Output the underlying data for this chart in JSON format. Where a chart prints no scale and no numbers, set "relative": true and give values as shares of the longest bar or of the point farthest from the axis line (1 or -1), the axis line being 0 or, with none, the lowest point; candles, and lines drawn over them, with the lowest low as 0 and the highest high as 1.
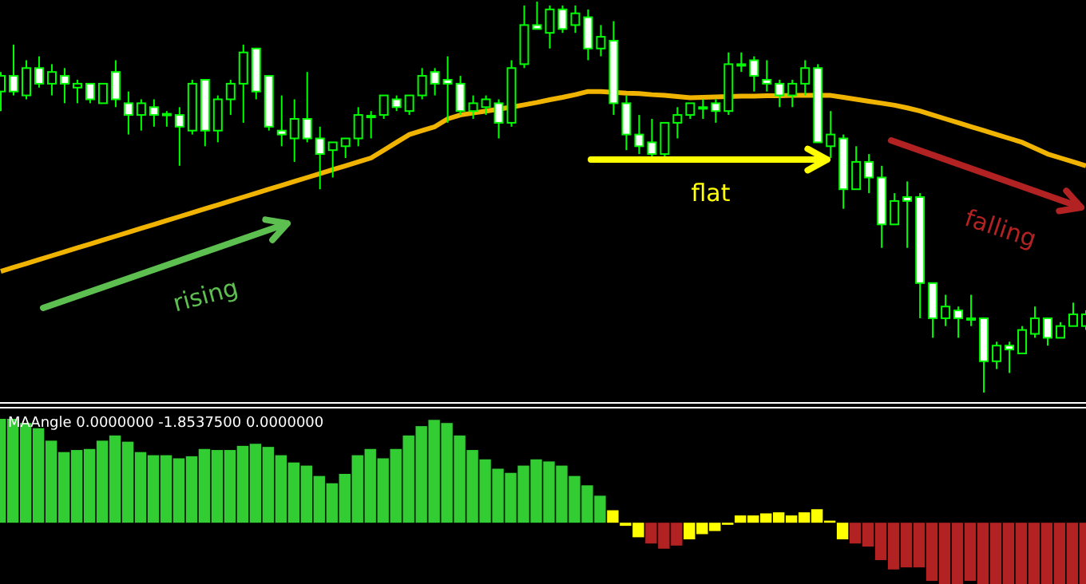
{
  "chart_data": [
    {
      "type": "candlestick",
      "relative": true,
      "categories": [
        null,
        null,
        null,
        null,
        null,
        null,
        null,
        null,
        null,
        null,
        null,
        null,
        null,
        null,
        null,
        null,
        null,
        null,
        null,
        null,
        null,
        null,
        null,
        null,
        null,
        null,
        null,
        null,
        null,
        null,
        null,
        null,
        null,
        null,
        null,
        null,
        null,
        null,
        null,
        null,
        null,
        null,
        null,
        null,
        null,
        null,
        null,
        null,
        null,
        null,
        null,
        null,
        null,
        null,
        null,
        null,
        null,
        null,
        null,
        null,
        null,
        null,
        null,
        null,
        null,
        null,
        null,
        null,
        null,
        null,
        null,
        null,
        null,
        null,
        null,
        null,
        null,
        null,
        null,
        null,
        null,
        null,
        null,
        null,
        null,
        null
      ],
      "ohlc": [
        [
          0.77,
          0.82,
          0.72,
          0.81
        ],
        [
          0.81,
          0.89,
          0.76,
          0.77
        ],
        [
          0.76,
          0.85,
          0.75,
          0.83
        ],
        [
          0.83,
          0.86,
          0.78,
          0.79
        ],
        [
          0.79,
          0.84,
          0.76,
          0.82
        ],
        [
          0.81,
          0.83,
          0.74,
          0.79
        ],
        [
          0.78,
          0.8,
          0.74,
          0.79
        ],
        [
          0.79,
          0.79,
          0.74,
          0.75
        ],
        [
          0.74,
          0.79,
          0.74,
          0.79
        ],
        [
          0.82,
          0.85,
          0.73,
          0.75
        ],
        [
          0.74,
          0.77,
          0.66,
          0.71
        ],
        [
          0.71,
          0.75,
          0.67,
          0.74
        ],
        [
          0.73,
          0.75,
          0.68,
          0.71
        ],
        [
          0.709,
          0.72,
          0.68,
          0.713
        ],
        [
          0.71,
          0.73,
          0.58,
          0.68
        ],
        [
          0.67,
          0.8,
          0.66,
          0.79
        ],
        [
          0.8,
          0.8,
          0.63,
          0.67
        ],
        [
          0.67,
          0.76,
          0.64,
          0.75
        ],
        [
          0.75,
          0.8,
          0.71,
          0.79
        ],
        [
          0.79,
          0.89,
          0.69,
          0.87
        ],
        [
          0.88,
          0.88,
          0.75,
          0.77
        ],
        [
          0.81,
          0.81,
          0.67,
          0.68
        ],
        [
          0.67,
          0.76,
          0.63,
          0.66
        ],
        [
          0.65,
          0.75,
          0.59,
          0.7
        ],
        [
          0.7,
          0.82,
          0.64,
          0.65
        ],
        [
          0.65,
          0.68,
          0.52,
          0.61
        ],
        [
          0.62,
          0.64,
          0.55,
          0.64
        ],
        [
          0.63,
          0.65,
          0.6,
          0.65
        ],
        [
          0.65,
          0.73,
          0.63,
          0.71
        ],
        [
          0.705,
          0.72,
          0.65,
          0.708
        ],
        [
          0.71,
          0.76,
          0.7,
          0.76
        ],
        [
          0.75,
          0.76,
          0.72,
          0.73
        ],
        [
          0.72,
          0.76,
          0.71,
          0.76
        ],
        [
          0.76,
          0.83,
          0.75,
          0.81
        ],
        [
          0.82,
          0.83,
          0.76,
          0.79
        ],
        [
          0.8,
          0.86,
          0.69,
          0.79
        ],
        [
          0.79,
          0.81,
          0.71,
          0.72
        ],
        [
          0.72,
          0.76,
          0.7,
          0.74
        ],
        [
          0.73,
          0.76,
          0.71,
          0.75
        ],
        [
          0.74,
          0.75,
          0.65,
          0.69
        ],
        [
          0.69,
          0.85,
          0.68,
          0.83
        ],
        [
          0.84,
          0.99,
          0.83,
          0.94
        ],
        [
          0.94,
          1,
          0.93,
          0.93
        ],
        [
          0.92,
          0.99,
          0.88,
          0.98
        ],
        [
          0.98,
          0.99,
          0.92,
          0.93
        ],
        [
          0.94,
          0.99,
          0.92,
          0.97
        ],
        [
          0.96,
          0.98,
          0.85,
          0.88
        ],
        [
          0.88,
          0.94,
          0.86,
          0.91
        ],
        [
          0.9,
          0.95,
          0.71,
          0.74
        ],
        [
          0.74,
          0.76,
          0.62,
          0.66
        ],
        [
          0.66,
          0.71,
          0.61,
          0.63
        ],
        [
          0.64,
          0.7,
          0.59,
          0.61
        ],
        [
          0.61,
          0.69,
          0.6,
          0.69
        ],
        [
          0.69,
          0.73,
          0.65,
          0.71
        ],
        [
          0.71,
          0.74,
          0.7,
          0.74
        ],
        [
          0.73,
          0.75,
          0.7,
          0.73
        ],
        [
          0.74,
          0.75,
          0.69,
          0.72
        ],
        [
          0.72,
          0.87,
          0.71,
          0.84
        ],
        [
          0.84,
          0.87,
          0.82,
          0.84
        ],
        [
          0.85,
          0.86,
          0.77,
          0.81
        ],
        [
          0.8,
          0.85,
          0.77,
          0.79
        ],
        [
          0.79,
          0.8,
          0.73,
          0.76
        ],
        [
          0.76,
          0.8,
          0.73,
          0.79
        ],
        [
          0.79,
          0.85,
          0.76,
          0.83
        ],
        [
          0.83,
          0.84,
          0.64,
          0.64
        ],
        [
          0.63,
          0.72,
          0.6,
          0.66
        ],
        [
          0.65,
          0.66,
          0.47,
          0.52
        ],
        [
          0.52,
          0.63,
          0.52,
          0.59
        ],
        [
          0.59,
          0.61,
          0.51,
          0.55
        ],
        [
          0.55,
          0.58,
          0.37,
          0.43
        ],
        [
          0.43,
          0.51,
          0.43,
          0.49
        ],
        [
          0.5,
          0.54,
          0.37,
          0.49
        ],
        [
          0.5,
          0.51,
          0.19,
          0.28
        ],
        [
          0.28,
          0.28,
          0.14,
          0.19
        ],
        [
          0.19,
          0.25,
          0.17,
          0.22
        ],
        [
          0.21,
          0.22,
          0.14,
          0.19
        ],
        [
          0.19,
          0.25,
          0.17,
          0.19
        ],
        [
          0.19,
          0.19,
          0,
          0.08
        ],
        [
          0.08,
          0.13,
          0.06,
          0.12
        ],
        [
          0.12,
          0.13,
          0.05,
          0.11
        ],
        [
          0.1,
          0.17,
          0.1,
          0.16
        ],
        [
          0.15,
          0.22,
          0.14,
          0.19
        ],
        [
          0.19,
          0.19,
          0.12,
          0.14
        ],
        [
          0.14,
          0.18,
          0.14,
          0.17
        ],
        [
          0.17,
          0.23,
          0.17,
          0.2
        ],
        [
          0.17,
          0.21,
          0.16,
          0.2
        ]
      ],
      "color": "#00ff00",
      "series": [
        {
          "type": "line",
          "color": "#f0b400",
          "values": [
            0.31,
            0.32,
            0.33,
            0.34,
            0.35,
            0.36,
            0.37,
            0.38,
            0.39,
            0.4,
            0.41,
            0.42,
            0.43,
            0.44,
            0.45,
            0.46,
            0.47,
            0.48,
            0.49,
            0.5,
            0.51,
            0.52,
            0.53,
            0.54,
            0.55,
            0.56,
            0.57,
            0.58,
            0.59,
            0.6,
            0.62,
            0.64,
            0.66,
            0.67,
            0.68,
            0.7,
            0.71,
            0.715,
            0.72,
            0.725,
            0.73,
            0.736,
            0.742,
            0.749,
            0.755,
            0.762,
            0.77,
            0.77,
            0.768,
            0.766,
            0.765,
            0.762,
            0.76,
            0.757,
            0.754,
            0.755,
            0.756,
            0.757,
            0.758,
            0.758,
            0.759,
            0.759,
            0.76,
            0.76,
            0.76,
            0.76,
            0.755,
            0.75,
            0.745,
            0.74,
            0.735,
            0.728,
            0.72,
            0.71,
            0.7,
            0.69,
            0.68,
            0.67,
            0.66,
            0.65,
            0.64,
            0.625,
            0.61,
            0.6,
            0.59,
            0.58
          ]
        }
      ],
      "annotations": [
        "rising",
        "flat",
        "falling"
      ]
    },
    {
      "type": "bar",
      "relative": true,
      "title": "MAAngle 0.0000000 -1.8537500 0.0000000",
      "categories": [
        null,
        null,
        null,
        null,
        null,
        null,
        null,
        null,
        null,
        null,
        null,
        null,
        null,
        null,
        null,
        null,
        null,
        null,
        null,
        null,
        null,
        null,
        null,
        null,
        null,
        null,
        null,
        null,
        null,
        null,
        null,
        null,
        null,
        null,
        null,
        null,
        null,
        null,
        null,
        null,
        null,
        null,
        null,
        null,
        null,
        null,
        null,
        null,
        null,
        null,
        null,
        null,
        null,
        null,
        null,
        null,
        null,
        null,
        null,
        null,
        null,
        null,
        null,
        null,
        null,
        null,
        null,
        null,
        null,
        null,
        null,
        null,
        null,
        null,
        null,
        null,
        null,
        null,
        null,
        null,
        null,
        null,
        null,
        null,
        null,
        null
      ],
      "values": [
        1,
        1,
        0.96,
        0.91,
        0.79,
        0.68,
        0.7,
        0.71,
        0.79,
        0.84,
        0.78,
        0.68,
        0.65,
        0.65,
        0.62,
        0.64,
        0.71,
        0.7,
        0.7,
        0.74,
        0.76,
        0.73,
        0.65,
        0.58,
        0.55,
        0.45,
        0.38,
        0.47,
        0.65,
        0.71,
        0.62,
        0.71,
        0.84,
        0.93,
        0.99,
        0.96,
        0.84,
        0.7,
        0.61,
        0.52,
        0.48,
        0.55,
        0.61,
        0.59,
        0.55,
        0.45,
        0.36,
        0.26,
        0.12,
        -0.03,
        -0.14,
        -0.2,
        -0.25,
        -0.22,
        -0.16,
        -0.11,
        -0.08,
        -0.02,
        0.07,
        0.07,
        0.09,
        0.1,
        0.07,
        0.1,
        0.13,
        0.02,
        -0.16,
        -0.2,
        -0.23,
        -0.36,
        -0.45,
        -0.43,
        -0.43,
        -0.56,
        -0.59,
        -0.59,
        -0.56,
        -0.59,
        -0.59,
        -0.59,
        -0.59,
        -0.59,
        -0.59,
        -0.59,
        -0.59,
        -0.59
      ],
      "colors": [
        "#32cd32",
        "#32cd32",
        "#32cd32",
        "#32cd32",
        "#32cd32",
        "#32cd32",
        "#32cd32",
        "#32cd32",
        "#32cd32",
        "#32cd32",
        "#32cd32",
        "#32cd32",
        "#32cd32",
        "#32cd32",
        "#32cd32",
        "#32cd32",
        "#32cd32",
        "#32cd32",
        "#32cd32",
        "#32cd32",
        "#32cd32",
        "#32cd32",
        "#32cd32",
        "#32cd32",
        "#32cd32",
        "#32cd32",
        "#32cd32",
        "#32cd32",
        "#32cd32",
        "#32cd32",
        "#32cd32",
        "#32cd32",
        "#32cd32",
        "#32cd32",
        "#32cd32",
        "#32cd32",
        "#32cd32",
        "#32cd32",
        "#32cd32",
        "#32cd32",
        "#32cd32",
        "#32cd32",
        "#32cd32",
        "#32cd32",
        "#32cd32",
        "#32cd32",
        "#32cd32",
        "#32cd32",
        "#ffff00",
        "#ffff00",
        "#ffff00",
        "#b22222",
        "#b22222",
        "#b22222",
        "#ffff00",
        "#ffff00",
        "#ffff00",
        "#ffff00",
        "#ffff00",
        "#ffff00",
        "#ffff00",
        "#ffff00",
        "#ffff00",
        "#ffff00",
        "#ffff00",
        "#ffff00",
        "#ffff00",
        "#b22222",
        "#b22222",
        "#b22222",
        "#b22222",
        "#b22222",
        "#b22222",
        "#b22222",
        "#b22222",
        "#b22222",
        "#b22222",
        "#b22222",
        "#b22222",
        "#b22222",
        "#b22222",
        "#b22222",
        "#b22222",
        "#b22222",
        "#b22222",
        "#b22222"
      ]
    }
  ]
}
